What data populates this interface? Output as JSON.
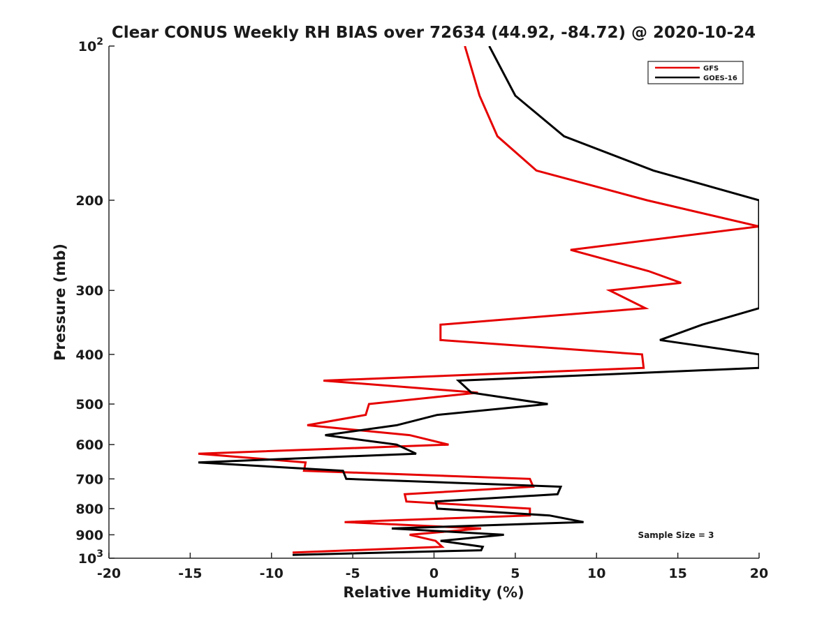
{
  "chart_data": {
    "type": "line",
    "title": "Clear CONUS Weekly RH BIAS over 72634 (44.92, -84.72) @ 2020-10-24",
    "xlabel": "Relative Humidity (%)",
    "ylabel": "Pressure (mb)",
    "xlim": [
      -20,
      20
    ],
    "ylim": [
      100,
      1000
    ],
    "yscale": "log",
    "y_reversed": true,
    "grid": false,
    "legend_position": "top-right",
    "x_ticks": [
      -20,
      -15,
      -10,
      -5,
      0,
      5,
      10,
      15,
      20
    ],
    "x_tick_labels": [
      "-20",
      "-15",
      "-10",
      "-5",
      "0",
      "5",
      "10",
      "15",
      "20"
    ],
    "y_ticks": [
      {
        "value": 100,
        "base": "10",
        "exp": "2"
      },
      {
        "value": 200,
        "label": "200"
      },
      {
        "value": 300,
        "label": "300"
      },
      {
        "value": 400,
        "label": "400"
      },
      {
        "value": 500,
        "label": "500"
      },
      {
        "value": 600,
        "label": "600"
      },
      {
        "value": 700,
        "label": "700"
      },
      {
        "value": 800,
        "label": "800"
      },
      {
        "value": 900,
        "label": "900"
      },
      {
        "value": 1000,
        "base": "10",
        "exp": "3"
      }
    ],
    "annotation": "Sample Size = 3",
    "series": [
      {
        "name": "GFS",
        "color": "#e60000",
        "points": [
          [
            1.9,
            100
          ],
          [
            2.8,
            125
          ],
          [
            3.9,
            150
          ],
          [
            6.3,
            175
          ],
          [
            13.1,
            200
          ],
          [
            20.0,
            225
          ],
          [
            8.4,
            250
          ],
          [
            13.2,
            275
          ],
          [
            15.2,
            290
          ],
          [
            10.8,
            300
          ],
          [
            13.0,
            325
          ],
          [
            0.4,
            350
          ],
          [
            0.4,
            375
          ],
          [
            12.8,
            400
          ],
          [
            12.9,
            425
          ],
          [
            -6.8,
            450
          ],
          [
            2.7,
            475
          ],
          [
            -4.0,
            500
          ],
          [
            -4.2,
            525
          ],
          [
            -7.8,
            550
          ],
          [
            -1.5,
            575
          ],
          [
            0.9,
            600
          ],
          [
            -14.5,
            625
          ],
          [
            -7.9,
            650
          ],
          [
            -8.0,
            675
          ],
          [
            5.9,
            700
          ],
          [
            6.1,
            725
          ],
          [
            -1.8,
            750
          ],
          [
            -1.7,
            775
          ],
          [
            5.9,
            800
          ],
          [
            5.9,
            825
          ],
          [
            -5.5,
            850
          ],
          [
            2.9,
            875
          ],
          [
            -1.5,
            900
          ],
          [
            0.1,
            925
          ],
          [
            0.5,
            950
          ],
          [
            -8.7,
            975
          ]
        ]
      },
      {
        "name": "GOES-16",
        "color": "#000000",
        "points": [
          [
            3.4,
            100
          ],
          [
            5.0,
            125
          ],
          [
            8.0,
            150
          ],
          [
            13.5,
            175
          ],
          [
            20.0,
            200
          ],
          [
            20.0,
            325
          ],
          [
            16.5,
            350
          ],
          [
            13.9,
            375
          ],
          [
            20.0,
            400
          ],
          [
            20.0,
            425
          ],
          [
            1.5,
            450
          ],
          [
            2.3,
            475
          ],
          [
            7.0,
            500
          ],
          [
            0.2,
            525
          ],
          [
            -2.3,
            550
          ],
          [
            -6.7,
            575
          ],
          [
            -2.3,
            600
          ],
          [
            -1.1,
            625
          ],
          [
            -14.5,
            650
          ],
          [
            -5.6,
            675
          ],
          [
            -5.4,
            700
          ],
          [
            7.8,
            725
          ],
          [
            7.6,
            750
          ],
          [
            0.1,
            775
          ],
          [
            0.2,
            800
          ],
          [
            7.1,
            825
          ],
          [
            9.2,
            850
          ],
          [
            -2.6,
            875
          ],
          [
            4.3,
            900
          ],
          [
            0.4,
            925
          ],
          [
            3.0,
            950
          ],
          [
            2.9,
            965
          ],
          [
            -8.7,
            985
          ]
        ]
      }
    ]
  }
}
